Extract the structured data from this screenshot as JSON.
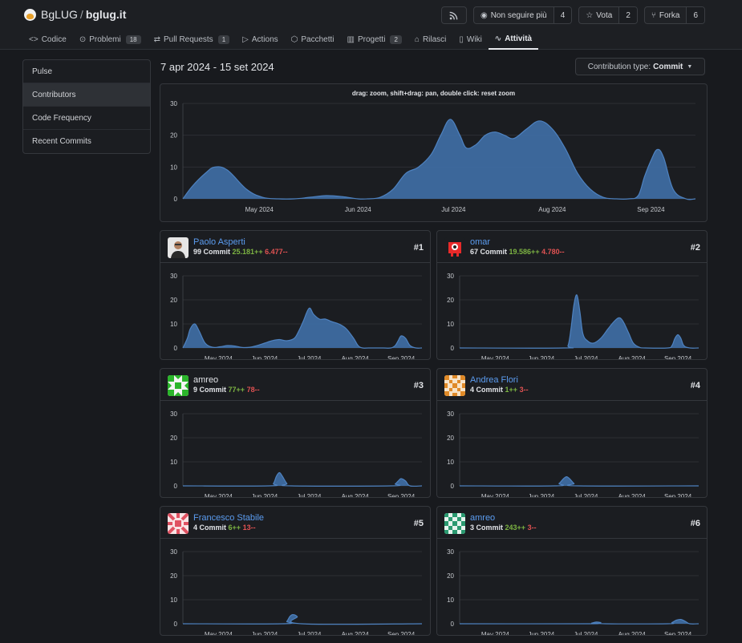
{
  "repo": {
    "owner": "BgLUG",
    "separator": "/",
    "name": "bglug.it"
  },
  "actions": {
    "rss_icon": "rss-icon",
    "watch": {
      "label": "Non seguire più",
      "count": "4",
      "icon": "eye-icon"
    },
    "star": {
      "label": "Vota",
      "count": "2",
      "icon": "star-icon"
    },
    "fork": {
      "label": "Forka",
      "count": "6",
      "icon": "fork-icon"
    }
  },
  "tabs": [
    {
      "label": "Codice",
      "icon": "code-icon"
    },
    {
      "label": "Problemi",
      "badge": "18",
      "icon": "issue-icon"
    },
    {
      "label": "Pull Requests",
      "badge": "1",
      "icon": "pull-request-icon"
    },
    {
      "label": "Actions",
      "icon": "play-icon"
    },
    {
      "label": "Pacchetti",
      "icon": "package-icon"
    },
    {
      "label": "Progetti",
      "badge": "2",
      "icon": "project-icon"
    },
    {
      "label": "Rilasci",
      "icon": "tag-icon"
    },
    {
      "label": "Wiki",
      "icon": "book-icon"
    },
    {
      "label": "Attività",
      "icon": "pulse-icon",
      "active": true
    }
  ],
  "sidebar": [
    "Pulse",
    "Contributors",
    "Code Frequency",
    "Recent Commits"
  ],
  "date_range": "7 apr 2024 - 15 set 2024",
  "contribution_type": {
    "label": "Contribution type:",
    "value": "Commit"
  },
  "main_chart": {
    "hint": "drag: zoom, shift+drag: pan, double click: reset zoom"
  },
  "contributors": [
    {
      "name": "Paolo Asperti",
      "commits": "99 Commit",
      "additions": "25.181++",
      "deletions": "6.477--",
      "rank": "#1",
      "link": true
    },
    {
      "name": "omar",
      "commits": "67 Commit",
      "additions": "19.586++",
      "deletions": "4.780--",
      "rank": "#2",
      "link": true
    },
    {
      "name": "amreo",
      "commits": "9 Commit",
      "additions": "77++",
      "deletions": "78--",
      "rank": "#3",
      "link": false
    },
    {
      "name": "Andrea Flori",
      "commits": "4 Commit",
      "additions": "1++",
      "deletions": "3--",
      "rank": "#4",
      "link": true
    },
    {
      "name": "Francesco Stabile",
      "commits": "4 Commit",
      "additions": "6++",
      "deletions": "13--",
      "rank": "#5",
      "link": true
    },
    {
      "name": "amreo",
      "commits": "3 Commit",
      "additions": "243++",
      "deletions": "3--",
      "rank": "#6",
      "link": true
    }
  ],
  "chart_data": [
    {
      "type": "area",
      "ylim": [
        0,
        30
      ],
      "yticks": [
        0,
        10,
        20,
        30
      ],
      "xticks": [
        "May 2024",
        "Jun 2024",
        "Jul 2024",
        "Aug 2024",
        "Sep 2024"
      ],
      "xlim_days": [
        0,
        161
      ],
      "xtick_days": [
        24,
        55,
        85,
        116,
        147
      ],
      "series": [
        {
          "x": [
            0,
            3,
            7,
            10,
            14,
            20,
            25,
            30,
            35,
            40,
            45,
            50,
            55,
            58,
            62,
            66,
            70,
            74,
            78,
            81,
            84,
            87,
            89,
            92,
            95,
            98,
            101,
            104,
            108,
            112,
            116,
            120,
            124,
            128,
            132,
            136,
            140,
            143,
            145,
            147,
            149,
            151,
            154,
            158,
            161
          ],
          "y": [
            0,
            4,
            8,
            10,
            9,
            3,
            0.5,
            0,
            0,
            0.5,
            1,
            0.7,
            0,
            0,
            0.5,
            3,
            8,
            10,
            14,
            20,
            25,
            20,
            16,
            17,
            20,
            21,
            20,
            19,
            22,
            24.5,
            22,
            16,
            8,
            3,
            0.5,
            0,
            0,
            1,
            7,
            12,
            15.5,
            13,
            3,
            0,
            0
          ]
        }
      ]
    },
    {
      "type": "area",
      "ylim": [
        0,
        30
      ],
      "yticks": [
        0,
        10,
        20,
        30
      ],
      "xticks": [
        "May 2024",
        "Jun 2024",
        "Jul 2024",
        "Aug 2024",
        "Sep 2024"
      ],
      "xlim_days": [
        0,
        161
      ],
      "xtick_days": [
        24,
        55,
        85,
        116,
        147
      ],
      "series": [
        {
          "x": [
            0,
            3,
            5,
            8,
            11,
            15,
            20,
            25,
            30,
            35,
            40,
            45,
            50,
            55,
            60,
            65,
            70,
            75,
            78,
            81,
            85,
            88,
            92,
            96,
            100,
            105,
            110,
            115,
            118,
            121,
            125,
            130,
            135,
            140,
            143,
            145,
            147,
            150,
            153,
            157,
            161
          ],
          "y": [
            0,
            4,
            8,
            10,
            7,
            2,
            0.3,
            0.5,
            1,
            0.8,
            0.2,
            0.3,
            1,
            2,
            3,
            3.5,
            3,
            4,
            7,
            11,
            16.5,
            14,
            12,
            12,
            11,
            10,
            8,
            4,
            1,
            0,
            0,
            0,
            0,
            0,
            1,
            3,
            5,
            4,
            1,
            0,
            0
          ]
        }
      ]
    },
    {
      "type": "area",
      "ylim": [
        0,
        30
      ],
      "yticks": [
        0,
        10,
        20,
        30
      ],
      "xticks": [
        "May 2024",
        "Jun 2024",
        "Jul 2024",
        "Aug 2024",
        "Sep 2024"
      ],
      "xlim_days": [
        0,
        161
      ],
      "xtick_days": [
        24,
        55,
        85,
        116,
        147
      ],
      "series": [
        {
          "x": [
            0,
            70,
            73,
            75,
            77,
            79,
            81,
            83,
            86,
            90,
            95,
            100,
            104,
            107,
            109,
            111,
            114,
            117,
            121,
            125,
            140,
            143,
            145,
            147,
            149,
            151,
            155,
            161
          ],
          "y": [
            0,
            0,
            1,
            8,
            18,
            22,
            15,
            6,
            3,
            2,
            4,
            8,
            11,
            12.5,
            12,
            10,
            6,
            2,
            0.3,
            0,
            0,
            1,
            4,
            5.5,
            4,
            1,
            0,
            0
          ]
        }
      ]
    },
    {
      "type": "area",
      "ylim": [
        0,
        30
      ],
      "yticks": [
        0,
        10,
        20,
        30
      ],
      "xticks": [
        "May 2024",
        "Jun 2024",
        "Jul 2024",
        "Aug 2024",
        "Sep 2024"
      ],
      "xlim_days": [
        0,
        161
      ],
      "xtick_days": [
        24,
        55,
        85,
        116,
        147
      ],
      "series": [
        {
          "x": [
            0,
            58,
            61,
            63,
            65,
            67,
            70,
            73,
            140,
            143,
            145,
            147,
            150,
            153,
            161
          ],
          "y": [
            0,
            0,
            1,
            4,
            5.5,
            4,
            1,
            0,
            0,
            0.8,
            2,
            3,
            2,
            0,
            0
          ]
        }
      ]
    },
    {
      "type": "area",
      "ylim": [
        0,
        30
      ],
      "yticks": [
        0,
        10,
        20,
        30
      ],
      "xticks": [
        "May 2024",
        "Jun 2024",
        "Jul 2024",
        "Aug 2024",
        "Sep 2024"
      ],
      "xlim_days": [
        0,
        161
      ],
      "xtick_days": [
        24,
        55,
        85,
        116,
        147
      ],
      "series": [
        {
          "x": [
            0,
            64,
            67,
            70,
            72,
            74,
            77,
            80,
            161
          ],
          "y": [
            0,
            0,
            1,
            3,
            3.8,
            3,
            1,
            0,
            0
          ]
        }
      ]
    },
    {
      "type": "area",
      "ylim": [
        0,
        30
      ],
      "yticks": [
        0,
        10,
        20,
        30
      ],
      "xticks": [
        "May 2024",
        "Jun 2024",
        "Jul 2024",
        "Aug 2024",
        "Sep 2024"
      ],
      "xlim_days": [
        0,
        161
      ],
      "xtick_days": [
        24,
        55,
        85,
        116,
        147
      ],
      "series": [
        {
          "x": [
            0,
            67,
            70,
            72,
            74,
            77,
            80,
            161
          ],
          "y": [
            0,
            0,
            1,
            3,
            3.8,
            3,
            0,
            0
          ]
        }
      ]
    },
    {
      "type": "area",
      "ylim": [
        0,
        30
      ],
      "yticks": [
        0,
        10,
        20,
        30
      ],
      "xticks": [
        "May 2024",
        "Jun 2024",
        "Jul 2024",
        "Aug 2024",
        "Sep 2024"
      ],
      "xlim_days": [
        0,
        161
      ],
      "xtick_days": [
        24,
        55,
        85,
        116,
        147
      ],
      "series": [
        {
          "x": [
            0,
            86,
            89,
            92,
            95,
            98,
            140,
            143,
            146,
            149,
            152,
            155,
            161
          ],
          "y": [
            0,
            0,
            0.3,
            0.7,
            0.5,
            0,
            0,
            0.5,
            1.5,
            1.8,
            1,
            0,
            0
          ]
        }
      ]
    }
  ],
  "colors": {
    "area_fill": "#3f6ea5",
    "area_stroke": "#4e82c0",
    "grid": "#2c2f34",
    "axis_text": "#c6c9ce",
    "link": "#5b9cf0",
    "add": "#7cb342",
    "del": "#e05252"
  }
}
